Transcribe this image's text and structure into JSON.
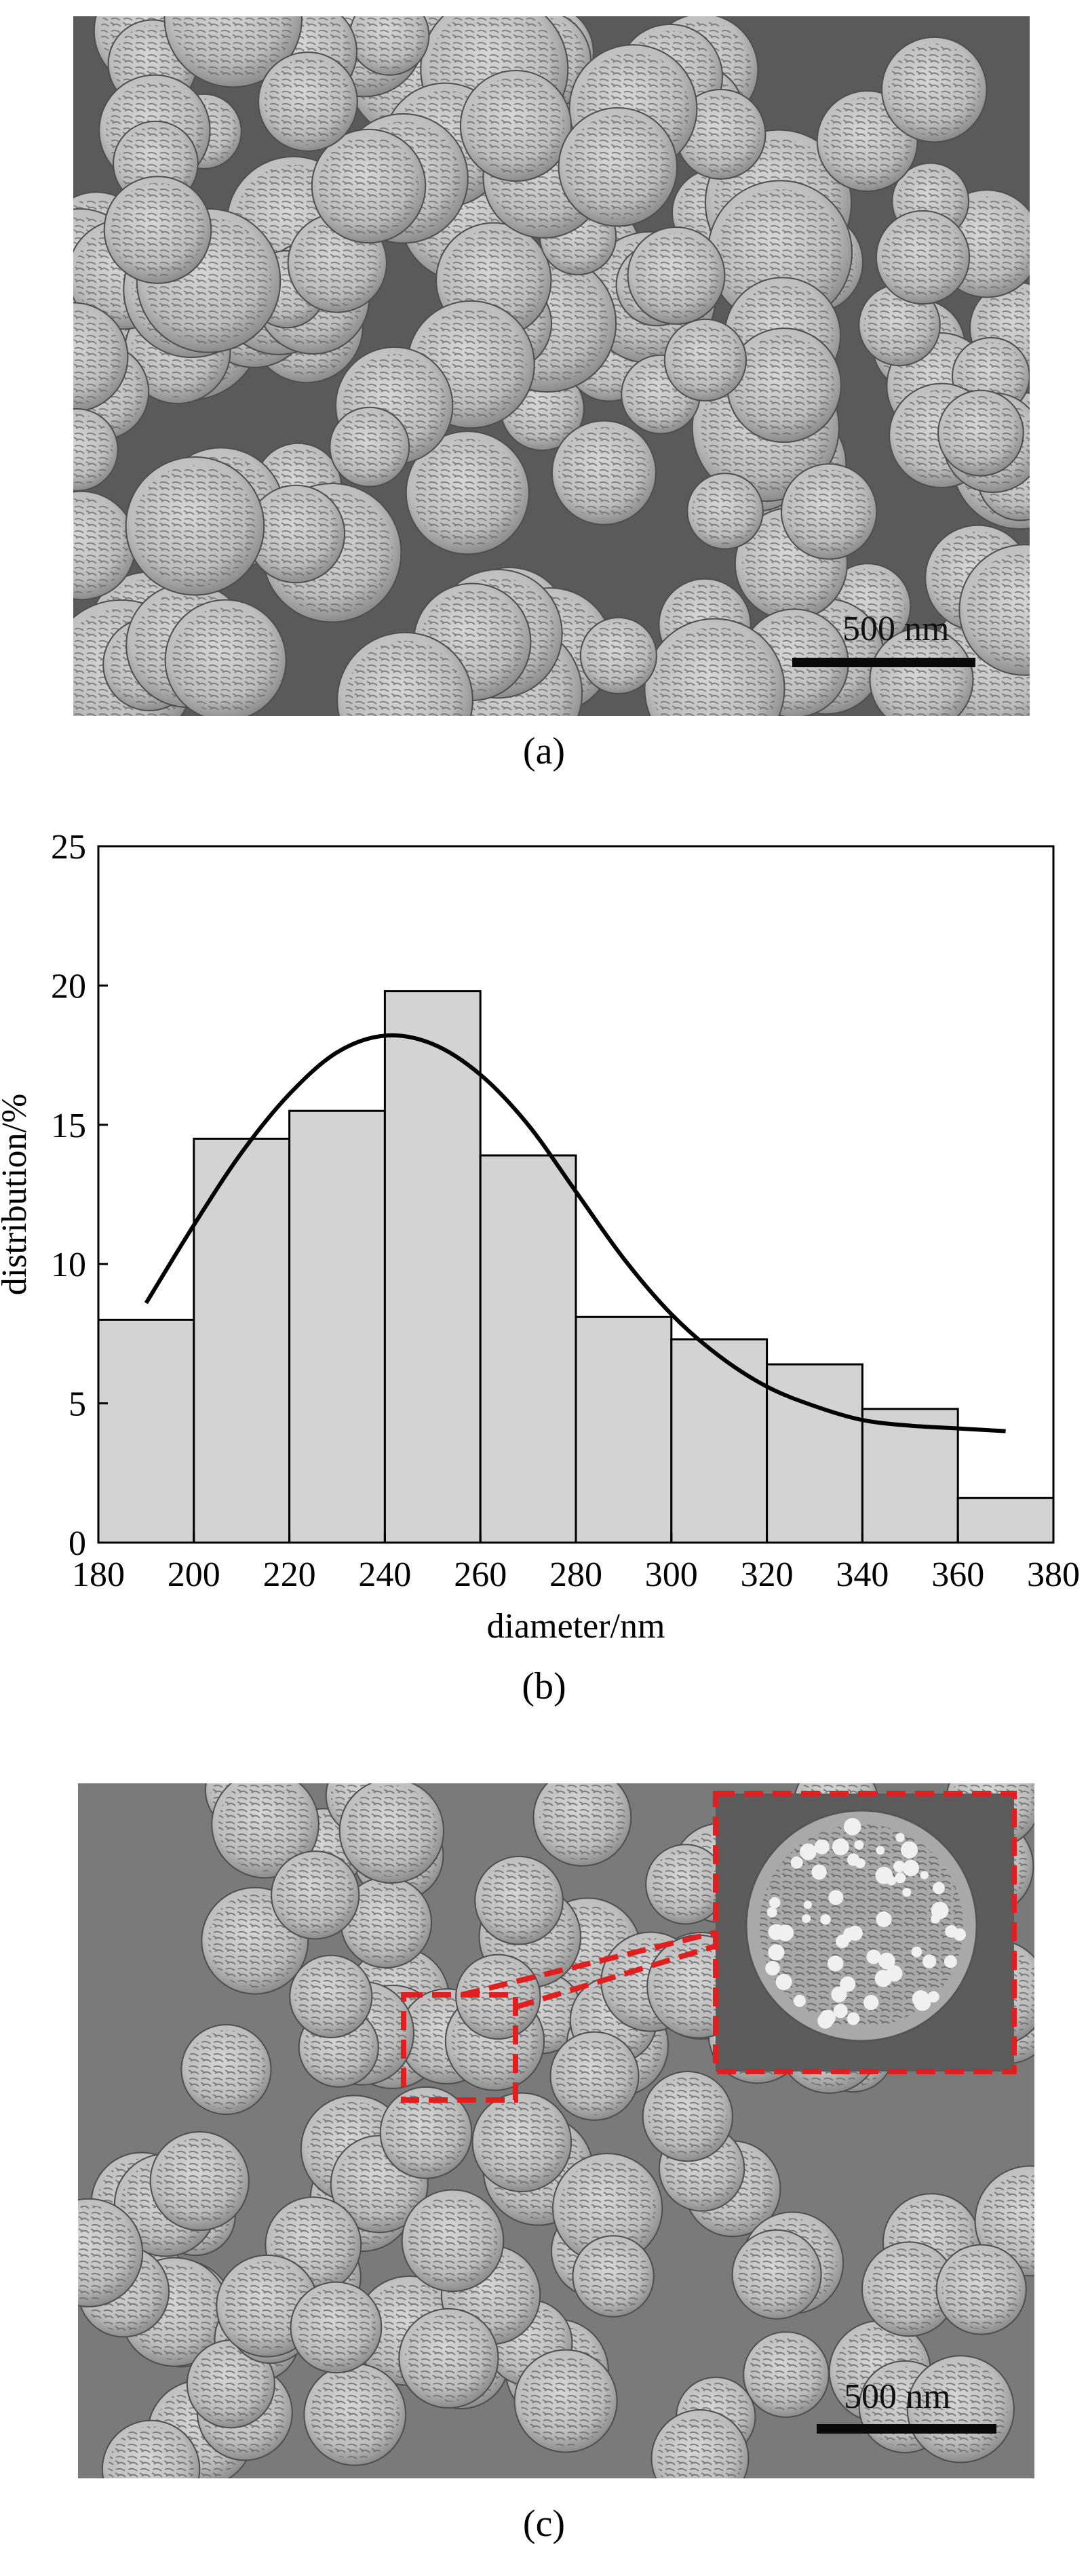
{
  "panels": {
    "a": {
      "caption": "(a)",
      "scale_bar_label": "500 nm"
    },
    "b": {
      "caption": "(b)"
    },
    "c": {
      "caption": "(c)",
      "scale_bar_label": "500 nm"
    }
  },
  "chart_data": {
    "type": "bar",
    "title": "",
    "xlabel": "diameter/nm",
    "ylabel": "distribution/%",
    "xlim": [
      180,
      380
    ],
    "ylim": [
      0,
      25
    ],
    "x_ticks": [
      180,
      200,
      220,
      240,
      260,
      280,
      300,
      320,
      340,
      360,
      380
    ],
    "y_ticks": [
      0,
      5,
      10,
      15,
      20,
      25
    ],
    "bins": [
      {
        "from": 180,
        "to": 200,
        "value": 8.0
      },
      {
        "from": 200,
        "to": 220,
        "value": 14.5
      },
      {
        "from": 220,
        "to": 240,
        "value": 15.5
      },
      {
        "from": 240,
        "to": 260,
        "value": 19.8
      },
      {
        "from": 260,
        "to": 280,
        "value": 13.9
      },
      {
        "from": 280,
        "to": 300,
        "value": 8.1
      },
      {
        "from": 300,
        "to": 320,
        "value": 7.3
      },
      {
        "from": 320,
        "to": 340,
        "value": 6.4
      },
      {
        "from": 340,
        "to": 360,
        "value": 4.8
      },
      {
        "from": 360,
        "to": 380,
        "value": 1.6
      }
    ],
    "fit_curve": {
      "type": "line",
      "x": [
        190,
        200,
        210,
        220,
        230,
        240,
        250,
        260,
        270,
        280,
        290,
        300,
        310,
        320,
        330,
        340,
        350,
        360,
        370
      ],
      "y": [
        8.6,
        11.4,
        14.0,
        16.1,
        17.6,
        18.2,
        17.9,
        16.8,
        15.0,
        12.6,
        10.2,
        8.2,
        6.7,
        5.6,
        4.9,
        4.4,
        4.2,
        4.1,
        4.0
      ]
    },
    "bar_fill": "#d3d3d3",
    "bar_stroke": "#000000",
    "grid": false,
    "legend": "none"
  },
  "colors": {
    "inset_frame": "#e02020",
    "sem_background_a": "#5a5a5a",
    "sem_background_c": "#7a7a7a"
  }
}
